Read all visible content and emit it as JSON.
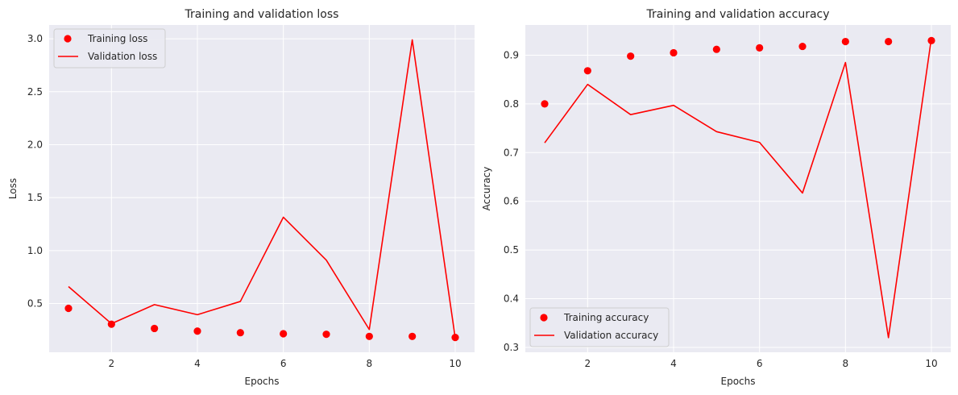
{
  "chart_data": [
    {
      "type": "line",
      "title": "Training and validation loss",
      "xlabel": "Epochs",
      "ylabel": "Loss",
      "xlim": [
        0.55,
        10.45
      ],
      "ylim": [
        0.04,
        3.13
      ],
      "xticks": [
        2,
        4,
        6,
        8,
        10
      ],
      "yticks": [
        0.5,
        1.0,
        1.5,
        2.0,
        2.5,
        3.0
      ],
      "ytick_labels": [
        "0.5",
        "1.0",
        "1.5",
        "2.0",
        "2.5",
        "3.0"
      ],
      "x": [
        1,
        2,
        3,
        4,
        5,
        6,
        7,
        8,
        9,
        10
      ],
      "series": [
        {
          "name": "Training loss",
          "style": "markers",
          "color": "#ff0000",
          "values": [
            0.455,
            0.305,
            0.265,
            0.24,
            0.225,
            0.215,
            0.21,
            0.19,
            0.19,
            0.18
          ]
        },
        {
          "name": "Validation loss",
          "style": "line",
          "color": "#ff0000",
          "values": [
            0.66,
            0.31,
            0.49,
            0.395,
            0.52,
            1.315,
            0.91,
            0.255,
            2.99,
            0.175
          ]
        }
      ],
      "grid": true,
      "legend": "upper left",
      "background": "#eaeaf2"
    },
    {
      "type": "line",
      "title": "Training and validation accuracy",
      "xlabel": "Epochs",
      "ylabel": "Accuracy",
      "xlim": [
        0.55,
        10.45
      ],
      "ylim": [
        0.29,
        0.962
      ],
      "xticks": [
        2,
        4,
        6,
        8,
        10
      ],
      "yticks": [
        0.3,
        0.4,
        0.5,
        0.6,
        0.7,
        0.8,
        0.9
      ],
      "ytick_labels": [
        "0.3",
        "0.4",
        "0.5",
        "0.6",
        "0.7",
        "0.8",
        "0.9"
      ],
      "x": [
        1,
        2,
        3,
        4,
        5,
        6,
        7,
        8,
        9,
        10
      ],
      "series": [
        {
          "name": "Training accuracy",
          "style": "markers",
          "color": "#ff0000",
          "values": [
            0.8,
            0.868,
            0.898,
            0.905,
            0.912,
            0.915,
            0.918,
            0.928,
            0.928,
            0.93
          ]
        },
        {
          "name": "Validation accuracy",
          "style": "line",
          "color": "#ff0000",
          "values": [
            0.72,
            0.84,
            0.778,
            0.797,
            0.743,
            0.721,
            0.617,
            0.885,
            0.32,
            0.935
          ]
        }
      ],
      "grid": true,
      "legend": "lower left",
      "background": "#eaeaf2"
    }
  ]
}
